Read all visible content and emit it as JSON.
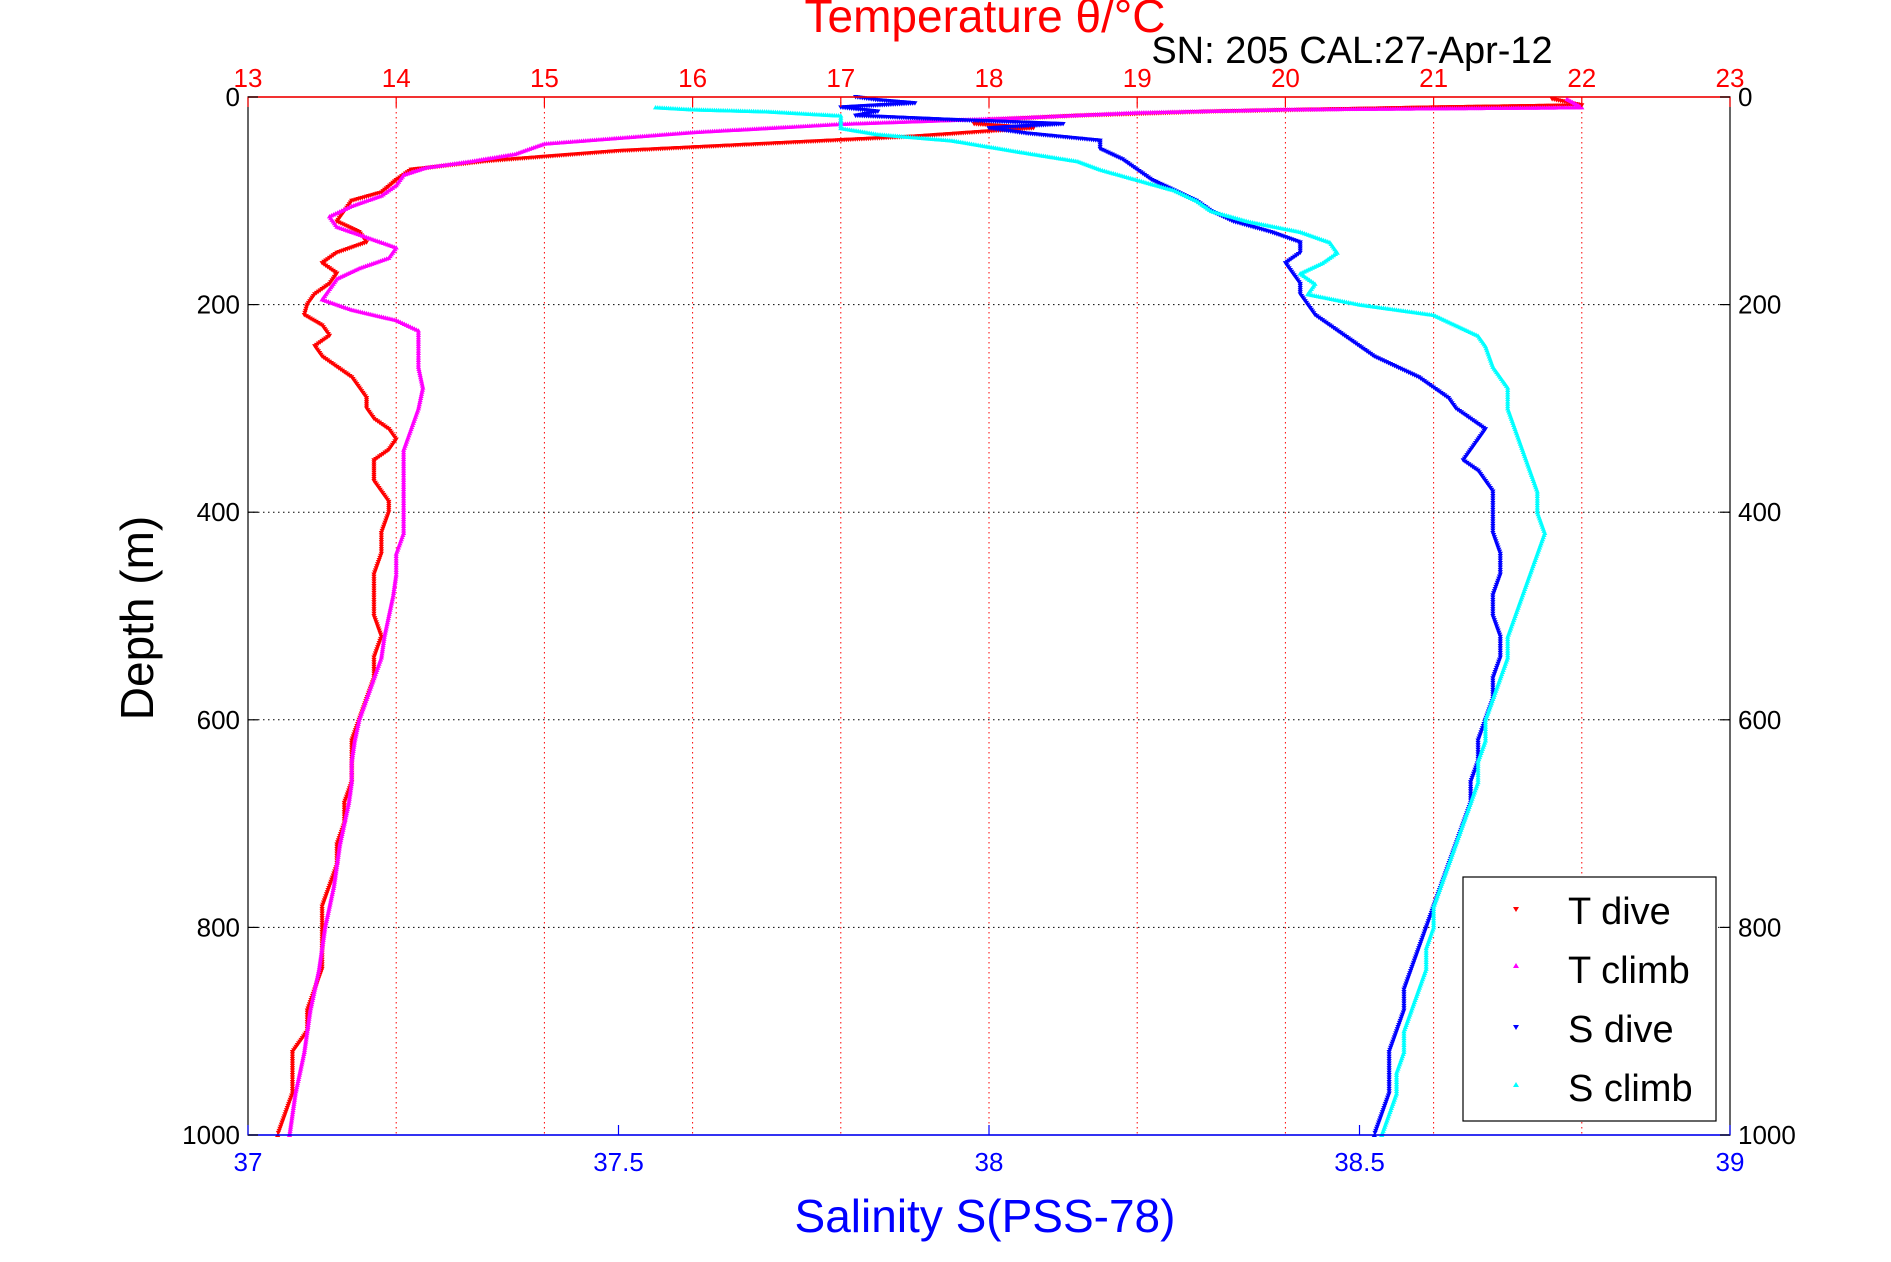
{
  "chart_data": {
    "type": "scatter",
    "title": "Temperature θ/°C",
    "subtitle": "SN: 205  CAL:27-Apr-12",
    "xlabel": "Salinity S(PSS-78)",
    "ylabel": "Depth (m)",
    "x_bottom": {
      "label": "Salinity S(PSS-78)",
      "lim": [
        37,
        39
      ],
      "ticks": [
        37,
        37.5,
        38,
        38.5,
        39
      ],
      "tick_labels": [
        "37",
        "37.5",
        "38",
        "38.5",
        "39"
      ]
    },
    "x_top": {
      "label": "Temperature θ/°C",
      "lim": [
        13,
        23
      ],
      "ticks": [
        13,
        14,
        15,
        16,
        17,
        18,
        19,
        20,
        21,
        22,
        23
      ],
      "tick_labels": [
        "13",
        "14",
        "15",
        "16",
        "17",
        "18",
        "19",
        "20",
        "21",
        "22",
        "23"
      ]
    },
    "y": {
      "label": "Depth (m)",
      "lim": [
        0,
        1000
      ],
      "reversed": true,
      "ticks": [
        0,
        200,
        400,
        600,
        800,
        1000
      ],
      "tick_labels": [
        "0",
        "200",
        "400",
        "600",
        "800",
        "1000"
      ]
    },
    "grid": true,
    "legend_position": "bottom-right",
    "series": [
      {
        "name": "T dive",
        "axis": "temperature",
        "color": "#ff0000",
        "marker": "triangle-down",
        "points": [
          [
            21.8,
            2
          ],
          [
            21.9,
            5
          ],
          [
            22.0,
            8
          ],
          [
            21.0,
            10
          ],
          [
            19.5,
            14
          ],
          [
            18.6,
            18
          ],
          [
            18.0,
            22
          ],
          [
            17.9,
            26
          ],
          [
            18.3,
            30
          ],
          [
            17.5,
            38
          ],
          [
            16.5,
            45
          ],
          [
            15.5,
            52
          ],
          [
            14.6,
            62
          ],
          [
            14.1,
            70
          ],
          [
            14.0,
            80
          ],
          [
            13.9,
            92
          ],
          [
            13.7,
            100
          ],
          [
            13.65,
            110
          ],
          [
            13.6,
            120
          ],
          [
            13.75,
            130
          ],
          [
            13.8,
            140
          ],
          [
            13.6,
            150
          ],
          [
            13.5,
            160
          ],
          [
            13.6,
            170
          ],
          [
            13.55,
            180
          ],
          [
            13.45,
            190
          ],
          [
            13.4,
            200
          ],
          [
            13.38,
            210
          ],
          [
            13.5,
            220
          ],
          [
            13.55,
            230
          ],
          [
            13.45,
            240
          ],
          [
            13.5,
            250
          ],
          [
            13.6,
            260
          ],
          [
            13.7,
            270
          ],
          [
            13.75,
            280
          ],
          [
            13.8,
            290
          ],
          [
            13.8,
            300
          ],
          [
            13.85,
            310
          ],
          [
            13.95,
            320
          ],
          [
            14.0,
            330
          ],
          [
            13.95,
            340
          ],
          [
            13.85,
            350
          ],
          [
            13.85,
            360
          ],
          [
            13.85,
            370
          ],
          [
            13.9,
            380
          ],
          [
            13.95,
            390
          ],
          [
            13.95,
            400
          ],
          [
            13.9,
            420
          ],
          [
            13.9,
            440
          ],
          [
            13.85,
            460
          ],
          [
            13.85,
            480
          ],
          [
            13.85,
            500
          ],
          [
            13.9,
            520
          ],
          [
            13.85,
            540
          ],
          [
            13.85,
            560
          ],
          [
            13.8,
            580
          ],
          [
            13.75,
            600
          ],
          [
            13.7,
            620
          ],
          [
            13.7,
            640
          ],
          [
            13.7,
            660
          ],
          [
            13.65,
            680
          ],
          [
            13.65,
            700
          ],
          [
            13.6,
            720
          ],
          [
            13.6,
            740
          ],
          [
            13.55,
            760
          ],
          [
            13.5,
            780
          ],
          [
            13.5,
            800
          ],
          [
            13.5,
            820
          ],
          [
            13.5,
            840
          ],
          [
            13.45,
            860
          ],
          [
            13.4,
            880
          ],
          [
            13.4,
            900
          ],
          [
            13.3,
            920
          ],
          [
            13.3,
            940
          ],
          [
            13.3,
            960
          ],
          [
            13.25,
            980
          ],
          [
            13.2,
            1000
          ]
        ]
      },
      {
        "name": "T climb",
        "axis": "temperature",
        "color": "#ff00ff",
        "marker": "triangle-up",
        "points": [
          [
            21.9,
            2
          ],
          [
            21.95,
            6
          ],
          [
            22.0,
            10
          ],
          [
            20.0,
            12
          ],
          [
            19.0,
            15
          ],
          [
            18.2,
            20
          ],
          [
            17.0,
            26
          ],
          [
            16.0,
            34
          ],
          [
            15.0,
            45
          ],
          [
            14.8,
            55
          ],
          [
            14.5,
            62
          ],
          [
            14.2,
            68
          ],
          [
            14.05,
            75
          ],
          [
            14.0,
            85
          ],
          [
            13.9,
            95
          ],
          [
            13.7,
            105
          ],
          [
            13.55,
            115
          ],
          [
            13.6,
            125
          ],
          [
            13.8,
            135
          ],
          [
            14.0,
            145
          ],
          [
            13.95,
            155
          ],
          [
            13.75,
            165
          ],
          [
            13.6,
            175
          ],
          [
            13.55,
            185
          ],
          [
            13.5,
            195
          ],
          [
            13.7,
            205
          ],
          [
            14.0,
            215
          ],
          [
            14.15,
            225
          ],
          [
            14.15,
            240
          ],
          [
            14.15,
            260
          ],
          [
            14.18,
            280
          ],
          [
            14.15,
            300
          ],
          [
            14.1,
            320
          ],
          [
            14.05,
            340
          ],
          [
            14.05,
            360
          ],
          [
            14.05,
            380
          ],
          [
            14.05,
            400
          ],
          [
            14.05,
            420
          ],
          [
            14.0,
            440
          ],
          [
            14.0,
            460
          ],
          [
            13.98,
            480
          ],
          [
            13.95,
            500
          ],
          [
            13.92,
            520
          ],
          [
            13.9,
            540
          ],
          [
            13.85,
            560
          ],
          [
            13.8,
            580
          ],
          [
            13.75,
            600
          ],
          [
            13.72,
            620
          ],
          [
            13.7,
            640
          ],
          [
            13.7,
            660
          ],
          [
            13.68,
            680
          ],
          [
            13.65,
            700
          ],
          [
            13.62,
            720
          ],
          [
            13.6,
            740
          ],
          [
            13.58,
            760
          ],
          [
            13.55,
            780
          ],
          [
            13.52,
            800
          ],
          [
            13.5,
            820
          ],
          [
            13.48,
            840
          ],
          [
            13.45,
            860
          ],
          [
            13.42,
            880
          ],
          [
            13.4,
            900
          ],
          [
            13.38,
            920
          ],
          [
            13.35,
            940
          ],
          [
            13.32,
            960
          ],
          [
            13.3,
            980
          ],
          [
            13.28,
            1000
          ]
        ]
      },
      {
        "name": "S dive",
        "axis": "salinity",
        "color": "#0000ff",
        "marker": "triangle-down",
        "points": [
          [
            37.82,
            0
          ],
          [
            37.85,
            3
          ],
          [
            37.9,
            6
          ],
          [
            37.8,
            10
          ],
          [
            37.85,
            14
          ],
          [
            37.82,
            18
          ],
          [
            37.95,
            22
          ],
          [
            38.1,
            26
          ],
          [
            38.0,
            30
          ],
          [
            38.05,
            35
          ],
          [
            38.15,
            42
          ],
          [
            38.15,
            50
          ],
          [
            38.18,
            60
          ],
          [
            38.2,
            70
          ],
          [
            38.22,
            80
          ],
          [
            38.25,
            90
          ],
          [
            38.28,
            100
          ],
          [
            38.3,
            110
          ],
          [
            38.33,
            120
          ],
          [
            38.38,
            130
          ],
          [
            38.42,
            140
          ],
          [
            38.42,
            150
          ],
          [
            38.4,
            160
          ],
          [
            38.41,
            170
          ],
          [
            38.42,
            180
          ],
          [
            38.42,
            190
          ],
          [
            38.43,
            200
          ],
          [
            38.44,
            210
          ],
          [
            38.46,
            220
          ],
          [
            38.48,
            230
          ],
          [
            38.5,
            240
          ],
          [
            38.52,
            250
          ],
          [
            38.55,
            260
          ],
          [
            38.58,
            270
          ],
          [
            38.6,
            280
          ],
          [
            38.62,
            290
          ],
          [
            38.63,
            300
          ],
          [
            38.65,
            310
          ],
          [
            38.67,
            320
          ],
          [
            38.66,
            330
          ],
          [
            38.65,
            340
          ],
          [
            38.64,
            350
          ],
          [
            38.66,
            360
          ],
          [
            38.67,
            370
          ],
          [
            38.68,
            380
          ],
          [
            38.68,
            400
          ],
          [
            38.68,
            420
          ],
          [
            38.69,
            440
          ],
          [
            38.69,
            460
          ],
          [
            38.68,
            480
          ],
          [
            38.68,
            500
          ],
          [
            38.69,
            520
          ],
          [
            38.69,
            540
          ],
          [
            38.68,
            560
          ],
          [
            38.68,
            580
          ],
          [
            38.67,
            600
          ],
          [
            38.66,
            620
          ],
          [
            38.66,
            640
          ],
          [
            38.65,
            660
          ],
          [
            38.65,
            680
          ],
          [
            38.64,
            700
          ],
          [
            38.63,
            720
          ],
          [
            38.62,
            740
          ],
          [
            38.61,
            760
          ],
          [
            38.6,
            780
          ],
          [
            38.59,
            800
          ],
          [
            38.58,
            820
          ],
          [
            38.57,
            840
          ],
          [
            38.56,
            860
          ],
          [
            38.56,
            880
          ],
          [
            38.55,
            900
          ],
          [
            38.54,
            920
          ],
          [
            38.54,
            940
          ],
          [
            38.54,
            960
          ],
          [
            38.53,
            980
          ],
          [
            38.52,
            1000
          ]
        ]
      },
      {
        "name": "S climb",
        "axis": "salinity",
        "color": "#00ffff",
        "marker": "triangle-up",
        "points": [
          [
            37.55,
            10
          ],
          [
            37.6,
            12
          ],
          [
            37.7,
            14
          ],
          [
            37.8,
            18
          ],
          [
            37.8,
            22
          ],
          [
            37.8,
            30
          ],
          [
            37.85,
            36
          ],
          [
            37.95,
            42
          ],
          [
            38.0,
            48
          ],
          [
            38.05,
            54
          ],
          [
            38.12,
            62
          ],
          [
            38.15,
            70
          ],
          [
            38.2,
            80
          ],
          [
            38.25,
            90
          ],
          [
            38.28,
            100
          ],
          [
            38.3,
            110
          ],
          [
            38.35,
            120
          ],
          [
            38.42,
            130
          ],
          [
            38.46,
            140
          ],
          [
            38.47,
            150
          ],
          [
            38.45,
            160
          ],
          [
            38.42,
            170
          ],
          [
            38.44,
            180
          ],
          [
            38.43,
            190
          ],
          [
            38.5,
            200
          ],
          [
            38.55,
            205
          ],
          [
            38.6,
            210
          ],
          [
            38.63,
            220
          ],
          [
            38.66,
            230
          ],
          [
            38.67,
            240
          ],
          [
            38.68,
            260
          ],
          [
            38.7,
            280
          ],
          [
            38.7,
            300
          ],
          [
            38.71,
            320
          ],
          [
            38.72,
            340
          ],
          [
            38.73,
            360
          ],
          [
            38.74,
            380
          ],
          [
            38.74,
            400
          ],
          [
            38.75,
            420
          ],
          [
            38.74,
            440
          ],
          [
            38.73,
            460
          ],
          [
            38.72,
            480
          ],
          [
            38.71,
            500
          ],
          [
            38.7,
            520
          ],
          [
            38.7,
            540
          ],
          [
            38.69,
            560
          ],
          [
            38.68,
            580
          ],
          [
            38.67,
            600
          ],
          [
            38.67,
            620
          ],
          [
            38.66,
            640
          ],
          [
            38.66,
            660
          ],
          [
            38.65,
            680
          ],
          [
            38.64,
            700
          ],
          [
            38.63,
            720
          ],
          [
            38.62,
            740
          ],
          [
            38.61,
            760
          ],
          [
            38.6,
            780
          ],
          [
            38.6,
            800
          ],
          [
            38.59,
            820
          ],
          [
            38.59,
            840
          ],
          [
            38.58,
            860
          ],
          [
            38.57,
            880
          ],
          [
            38.56,
            900
          ],
          [
            38.56,
            920
          ],
          [
            38.55,
            940
          ],
          [
            38.55,
            960
          ],
          [
            38.54,
            980
          ],
          [
            38.53,
            1000
          ]
        ]
      }
    ]
  }
}
